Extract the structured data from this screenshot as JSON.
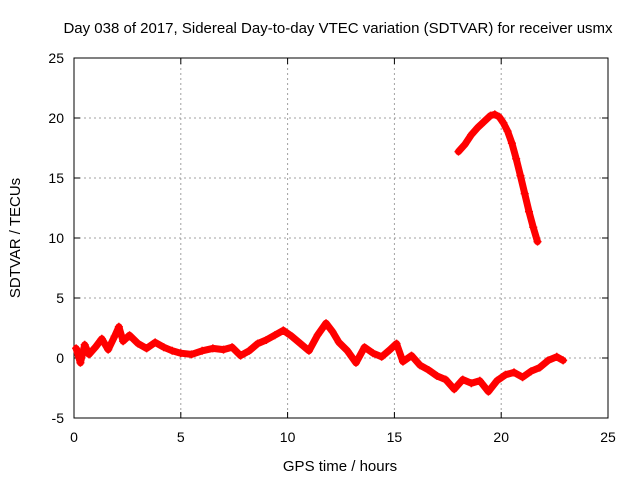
{
  "chart_data": {
    "type": "scatter",
    "title": "Day 038 of 2017, Sidereal Day-to-day VTEC variation (SDTVAR) for receiver usmx",
    "xlabel": "GPS time / hours",
    "ylabel": "SDTVAR / TECUs",
    "xlim": [
      0,
      25
    ],
    "ylim": [
      -5,
      25
    ],
    "x_ticks": [
      "0",
      "5",
      "10",
      "15",
      "20",
      "25"
    ],
    "y_ticks": [
      "-5",
      "0",
      "5",
      "10",
      "15",
      "20",
      "25"
    ],
    "grid": true,
    "marker": "+",
    "color": "#ff0000",
    "series": [
      {
        "name": "satellite-track-low",
        "points": [
          [
            0.1,
            0.8
          ],
          [
            0.3,
            -0.4
          ],
          [
            0.5,
            1.1
          ],
          [
            0.7,
            0.3
          ],
          [
            1.0,
            0.9
          ],
          [
            1.3,
            1.6
          ],
          [
            1.6,
            0.7
          ],
          [
            1.9,
            1.8
          ],
          [
            2.1,
            2.6
          ],
          [
            2.3,
            1.4
          ],
          [
            2.6,
            1.9
          ],
          [
            3.0,
            1.2
          ],
          [
            3.4,
            0.8
          ],
          [
            3.8,
            1.3
          ],
          [
            4.2,
            0.9
          ],
          [
            4.6,
            0.6
          ],
          [
            5.0,
            0.4
          ],
          [
            5.5,
            0.3
          ],
          [
            6.0,
            0.6
          ],
          [
            6.5,
            0.8
          ],
          [
            7.0,
            0.7
          ],
          [
            7.4,
            0.9
          ],
          [
            7.8,
            0.2
          ],
          [
            8.2,
            0.6
          ],
          [
            8.6,
            1.2
          ],
          [
            9.0,
            1.5
          ],
          [
            9.4,
            1.9
          ],
          [
            9.8,
            2.3
          ],
          [
            10.2,
            1.8
          ],
          [
            10.6,
            1.2
          ],
          [
            11.0,
            0.6
          ],
          [
            11.4,
            1.9
          ],
          [
            11.8,
            2.9
          ],
          [
            12.1,
            2.2
          ],
          [
            12.4,
            1.3
          ],
          [
            12.8,
            0.6
          ],
          [
            13.2,
            -0.4
          ],
          [
            13.6,
            0.9
          ],
          [
            14.0,
            0.4
          ],
          [
            14.4,
            0.1
          ],
          [
            14.8,
            0.7
          ],
          [
            15.1,
            1.2
          ],
          [
            15.4,
            -0.3
          ],
          [
            15.8,
            0.2
          ],
          [
            16.2,
            -0.6
          ],
          [
            16.6,
            -1.0
          ],
          [
            17.0,
            -1.5
          ],
          [
            17.4,
            -1.8
          ],
          [
            17.8,
            -2.6
          ],
          [
            18.2,
            -1.8
          ],
          [
            18.6,
            -2.1
          ],
          [
            19.0,
            -1.9
          ],
          [
            19.4,
            -2.8
          ],
          [
            19.8,
            -1.9
          ],
          [
            20.2,
            -1.4
          ],
          [
            20.6,
            -1.2
          ],
          [
            21.0,
            -1.6
          ],
          [
            21.4,
            -1.1
          ],
          [
            21.8,
            -0.8
          ],
          [
            22.2,
            -0.2
          ],
          [
            22.6,
            0.1
          ],
          [
            22.9,
            -0.2
          ]
        ]
      },
      {
        "name": "satellite-track-high",
        "points": [
          [
            18.0,
            17.2
          ],
          [
            18.3,
            17.8
          ],
          [
            18.6,
            18.6
          ],
          [
            18.9,
            19.2
          ],
          [
            19.2,
            19.7
          ],
          [
            19.5,
            20.2
          ],
          [
            19.7,
            20.3
          ],
          [
            19.9,
            20.1
          ],
          [
            20.1,
            19.6
          ],
          [
            20.3,
            18.9
          ],
          [
            20.5,
            17.9
          ],
          [
            20.7,
            16.6
          ],
          [
            20.9,
            15.2
          ],
          [
            21.1,
            13.7
          ],
          [
            21.3,
            12.2
          ],
          [
            21.5,
            10.9
          ],
          [
            21.7,
            9.7
          ]
        ]
      }
    ]
  }
}
